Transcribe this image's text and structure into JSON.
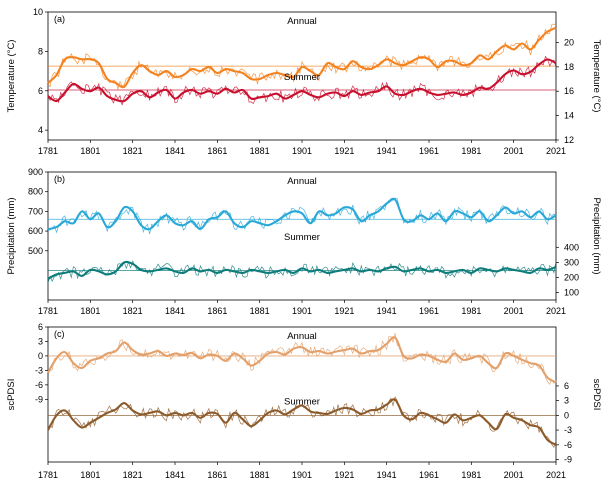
{
  "chart_data": [
    {
      "type": "line",
      "panel_label": "(a)",
      "ylabel_left": "Temperature (°C)",
      "ylabel_right": "Temperature (°C)",
      "xlim": [
        1781,
        2021
      ],
      "xticks": [
        "1781",
        "1801",
        "1821",
        "1841",
        "1861",
        "1881",
        "1901",
        "1921",
        "1941",
        "1961",
        "1981",
        "2001",
        "2021"
      ],
      "left_axis": {
        "ticks": [
          "10",
          "8",
          "6",
          "4"
        ],
        "ylim": [
          3.5,
          10
        ]
      },
      "right_axis": {
        "ticks": [
          "20",
          "18",
          "16",
          "14",
          "12"
        ],
        "ylim": [
          12,
          22.5
        ]
      },
      "grid": false,
      "series": [
        {
          "name": "Annual",
          "axis": "left",
          "color": "#f4821f",
          "mean_line": 7.25,
          "x": [
            1781,
            1785,
            1789,
            1793,
            1797,
            1801,
            1805,
            1809,
            1813,
            1817,
            1821,
            1825,
            1829,
            1833,
            1837,
            1841,
            1845,
            1849,
            1853,
            1857,
            1861,
            1865,
            1869,
            1873,
            1877,
            1881,
            1885,
            1889,
            1893,
            1897,
            1901,
            1905,
            1909,
            1913,
            1917,
            1921,
            1925,
            1929,
            1933,
            1937,
            1941,
            1945,
            1949,
            1953,
            1957,
            1961,
            1965,
            1969,
            1973,
            1977,
            1981,
            1985,
            1989,
            1993,
            1997,
            2001,
            2005,
            2009,
            2013,
            2017,
            2021
          ],
          "values": [
            6.4,
            6.8,
            7.6,
            7.7,
            7.6,
            7.6,
            7.4,
            6.6,
            6.4,
            6.2,
            6.9,
            7.3,
            7.0,
            6.8,
            7.0,
            6.7,
            6.8,
            7.1,
            7.0,
            7.2,
            6.9,
            7.1,
            7.0,
            6.9,
            6.6,
            6.6,
            6.8,
            6.9,
            6.8,
            6.7,
            7.2,
            7.0,
            6.8,
            7.4,
            7.2,
            7.1,
            7.5,
            7.2,
            7.1,
            7.3,
            7.6,
            7.4,
            7.3,
            7.5,
            7.7,
            7.6,
            7.2,
            7.5,
            7.5,
            7.3,
            7.4,
            7.8,
            7.6,
            8.0,
            8.3,
            8.1,
            8.4,
            8.1,
            8.6,
            9.0,
            9.2
          ]
        },
        {
          "name": "Summer",
          "axis": "right",
          "color": "#c8102e",
          "mean_line": 16.1,
          "x": [
            1781,
            1785,
            1789,
            1793,
            1797,
            1801,
            1805,
            1809,
            1813,
            1817,
            1821,
            1825,
            1829,
            1833,
            1837,
            1841,
            1845,
            1849,
            1853,
            1857,
            1861,
            1865,
            1869,
            1873,
            1877,
            1881,
            1885,
            1889,
            1893,
            1897,
            1901,
            1905,
            1909,
            1913,
            1917,
            1921,
            1925,
            1929,
            1933,
            1937,
            1941,
            1945,
            1949,
            1953,
            1957,
            1961,
            1965,
            1969,
            1973,
            1977,
            1981,
            1985,
            1989,
            1993,
            1997,
            2001,
            2005,
            2009,
            2013,
            2017,
            2021
          ],
          "values": [
            15.6,
            15.2,
            15.9,
            16.6,
            16.2,
            16.0,
            16.3,
            15.6,
            15.3,
            15.2,
            15.8,
            16.0,
            15.5,
            15.9,
            16.1,
            15.4,
            15.9,
            16.1,
            15.8,
            16.0,
            15.8,
            16.2,
            15.9,
            16.1,
            15.4,
            15.5,
            15.6,
            15.8,
            15.4,
            15.7,
            16.0,
            15.7,
            15.5,
            15.8,
            15.9,
            15.6,
            16.0,
            15.7,
            15.9,
            16.0,
            16.4,
            15.8,
            15.7,
            16.0,
            16.2,
            15.9,
            15.7,
            15.8,
            15.9,
            15.7,
            15.9,
            16.3,
            16.2,
            16.7,
            17.4,
            17.7,
            17.4,
            17.6,
            18.2,
            18.6,
            18.3
          ]
        }
      ]
    },
    {
      "type": "line",
      "panel_label": "(b)",
      "ylabel_left": "Precipitation (mm)",
      "ylabel_right": "Precipitation (mm)",
      "xlim": [
        1781,
        2021
      ],
      "xticks": [
        "1781",
        "1801",
        "1821",
        "1841",
        "1861",
        "1881",
        "1901",
        "1921",
        "1941",
        "1961",
        "1981",
        "2001",
        "2021"
      ],
      "left_axis": {
        "ticks": [
          "900",
          "800",
          "700",
          "600",
          "500"
        ],
        "ylim": [
          250,
          900
        ]
      },
      "right_axis": {
        "ticks": [
          "400",
          "300",
          "200",
          "100"
        ],
        "ylim": [
          50,
          900
        ]
      },
      "grid": false,
      "series": [
        {
          "name": "Annual",
          "axis": "left",
          "color": "#29a8d8",
          "mean_line": 660,
          "x": [
            1781,
            1785,
            1789,
            1793,
            1797,
            1801,
            1805,
            1809,
            1813,
            1817,
            1821,
            1825,
            1829,
            1833,
            1837,
            1841,
            1845,
            1849,
            1853,
            1857,
            1861,
            1865,
            1869,
            1873,
            1877,
            1881,
            1885,
            1889,
            1893,
            1897,
            1901,
            1905,
            1909,
            1913,
            1917,
            1921,
            1925,
            1929,
            1933,
            1937,
            1941,
            1945,
            1949,
            1953,
            1957,
            1961,
            1965,
            1969,
            1973,
            1977,
            1981,
            1985,
            1989,
            1993,
            1997,
            2001,
            2005,
            2009,
            2013,
            2017,
            2021
          ],
          "values": [
            610,
            620,
            650,
            640,
            700,
            660,
            690,
            620,
            650,
            720,
            700,
            630,
            610,
            650,
            680,
            640,
            630,
            650,
            610,
            660,
            670,
            700,
            640,
            620,
            650,
            640,
            630,
            650,
            680,
            700,
            690,
            640,
            700,
            680,
            690,
            720,
            710,
            650,
            680,
            700,
            740,
            760,
            660,
            650,
            680,
            660,
            690,
            650,
            700,
            690,
            670,
            700,
            650,
            680,
            720,
            690,
            700,
            670,
            700,
            660,
            680
          ]
        },
        {
          "name": "Summer",
          "axis": "right",
          "color": "#0e7c7b",
          "mean_line": 245,
          "x": [
            1781,
            1785,
            1789,
            1793,
            1797,
            1801,
            1805,
            1809,
            1813,
            1817,
            1821,
            1825,
            1829,
            1833,
            1837,
            1841,
            1845,
            1849,
            1853,
            1857,
            1861,
            1865,
            1869,
            1873,
            1877,
            1881,
            1885,
            1889,
            1893,
            1897,
            1901,
            1905,
            1909,
            1913,
            1917,
            1921,
            1925,
            1929,
            1933,
            1937,
            1941,
            1945,
            1949,
            1953,
            1957,
            1961,
            1965,
            1969,
            1973,
            1977,
            1981,
            1985,
            1989,
            1993,
            1997,
            2001,
            2005,
            2009,
            2013,
            2017,
            2021
          ],
          "values": [
            190,
            220,
            230,
            240,
            210,
            250,
            240,
            220,
            240,
            300,
            290,
            250,
            240,
            250,
            260,
            240,
            230,
            260,
            240,
            250,
            230,
            250,
            240,
            230,
            250,
            240,
            230,
            240,
            250,
            230,
            260,
            240,
            250,
            230,
            240,
            250,
            260,
            240,
            250,
            240,
            260,
            270,
            240,
            250,
            260,
            240,
            250,
            230,
            240,
            250,
            230,
            260,
            250,
            240,
            260,
            250,
            240,
            230,
            260,
            250,
            270
          ]
        }
      ]
    },
    {
      "type": "line",
      "panel_label": "(c)",
      "ylabel_left": "scPDSI",
      "ylabel_right": "scPDSI",
      "xlim": [
        1781,
        2021
      ],
      "xticks": [
        "1781",
        "1801",
        "1821",
        "1841",
        "1861",
        "1881",
        "1901",
        "1921",
        "1941",
        "1961",
        "1981",
        "2001",
        "2021"
      ],
      "left_axis": {
        "ticks": [
          "6",
          "3",
          "0",
          "-3",
          "-6",
          "-9"
        ],
        "ylim": [
          -22,
          6
        ]
      },
      "right_axis": {
        "ticks": [
          "6",
          "3",
          "0",
          "-3",
          "-6",
          "-9"
        ],
        "ylim": [
          -9.5,
          18
        ]
      },
      "grid": false,
      "series": [
        {
          "name": "Annual",
          "axis": "left",
          "color": "#e3a06a",
          "mean_line": 0,
          "x": [
            1781,
            1785,
            1789,
            1793,
            1797,
            1801,
            1805,
            1809,
            1813,
            1817,
            1821,
            1825,
            1829,
            1833,
            1837,
            1841,
            1845,
            1849,
            1853,
            1857,
            1861,
            1865,
            1869,
            1873,
            1877,
            1881,
            1885,
            1889,
            1893,
            1897,
            1901,
            1905,
            1909,
            1913,
            1917,
            1921,
            1925,
            1929,
            1933,
            1937,
            1941,
            1945,
            1949,
            1953,
            1957,
            1961,
            1965,
            1969,
            1973,
            1977,
            1981,
            1985,
            1989,
            1993,
            1997,
            2001,
            2005,
            2009,
            2013,
            2017,
            2021
          ],
          "values": [
            -3.5,
            -0.5,
            0.8,
            -1.5,
            -2.5,
            -1.0,
            -0.5,
            0.5,
            1.0,
            2.8,
            1.2,
            0.3,
            0.5,
            1.0,
            0.0,
            0.5,
            0.2,
            0.6,
            -0.5,
            0.3,
            0.0,
            -1.0,
            0.5,
            -0.5,
            -2.0,
            -1.0,
            0.5,
            0.8,
            0.3,
            1.5,
            1.8,
            0.8,
            1.0,
            0.5,
            0.9,
            1.2,
            1.5,
            0.5,
            1.0,
            1.2,
            2.5,
            3.8,
            0.0,
            -0.5,
            0.3,
            0.0,
            -0.8,
            -1.2,
            0.5,
            -0.8,
            -0.5,
            0.0,
            -1.5,
            -2.5,
            0.5,
            0.0,
            -0.8,
            -1.5,
            -2.0,
            -4.5,
            -5.5
          ]
        },
        {
          "name": "Summer",
          "axis": "right",
          "color": "#8c5a2b",
          "mean_line": 0,
          "x": [
            1781,
            1785,
            1789,
            1793,
            1797,
            1801,
            1805,
            1809,
            1813,
            1817,
            1821,
            1825,
            1829,
            1833,
            1837,
            1841,
            1845,
            1849,
            1853,
            1857,
            1861,
            1865,
            1869,
            1873,
            1877,
            1881,
            1885,
            1889,
            1893,
            1897,
            1901,
            1905,
            1909,
            1913,
            1917,
            1921,
            1925,
            1929,
            1933,
            1937,
            1941,
            1945,
            1949,
            1953,
            1957,
            1961,
            1965,
            1969,
            1973,
            1977,
            1981,
            1985,
            1989,
            1993,
            1997,
            2001,
            2005,
            2009,
            2013,
            2017,
            2021
          ],
          "values": [
            -3.0,
            0.0,
            1.0,
            -1.0,
            -2.5,
            -1.5,
            -0.5,
            0.5,
            1.2,
            2.5,
            1.0,
            0.2,
            0.5,
            0.8,
            0.0,
            0.5,
            0.0,
            0.5,
            -0.5,
            0.5,
            0.3,
            -1.5,
            0.5,
            -0.8,
            -2.2,
            -1.0,
            0.5,
            1.0,
            0.2,
            1.2,
            2.0,
            0.8,
            0.5,
            0.3,
            1.0,
            1.5,
            1.2,
            0.3,
            1.0,
            1.2,
            2.2,
            3.2,
            0.0,
            -0.8,
            0.5,
            0.0,
            -0.8,
            -1.5,
            0.2,
            -1.0,
            -0.5,
            0.0,
            -1.5,
            -2.8,
            0.2,
            -0.5,
            -1.0,
            -2.0,
            -2.5,
            -5.0,
            -6.0
          ]
        }
      ]
    }
  ]
}
